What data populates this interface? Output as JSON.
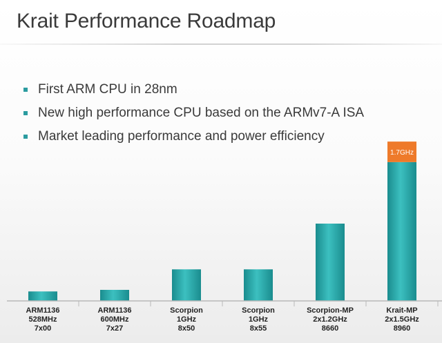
{
  "slide": {
    "title": "Krait Performance Roadmap",
    "bullets": [
      "First ARM CPU in 28nm",
      "New high performance CPU based on the ARMv7-A ISA",
      "Market leading performance and power efficiency"
    ]
  },
  "colors": {
    "bar": "#2aa7a7",
    "bar_dark": "#1a8c8e",
    "bar_light": "#3cc0c0",
    "highlight": "#ee7a2a",
    "bullet": "#2b9ca0"
  },
  "chart_data": {
    "type": "bar",
    "categories": [
      [
        "ARM1136",
        "528MHz",
        "7x00"
      ],
      [
        "ARM1136",
        "600MHz",
        "7x27"
      ],
      [
        "Scorpion",
        "1GHz",
        "8x50"
      ],
      [
        "Scorpion",
        "1GHz",
        "8x55"
      ],
      [
        "Scorpion-MP",
        "2x1.2GHz",
        "8660"
      ],
      [
        "Krait-MP",
        "2x1.5GHz",
        "8960"
      ]
    ],
    "values": [
      6,
      7,
      20,
      20,
      49,
      88
    ],
    "extra_segment": {
      "index": 5,
      "value": 13,
      "label": "1.7GHz"
    },
    "ylim": [
      0,
      105
    ],
    "grid": false,
    "legend": "none"
  }
}
